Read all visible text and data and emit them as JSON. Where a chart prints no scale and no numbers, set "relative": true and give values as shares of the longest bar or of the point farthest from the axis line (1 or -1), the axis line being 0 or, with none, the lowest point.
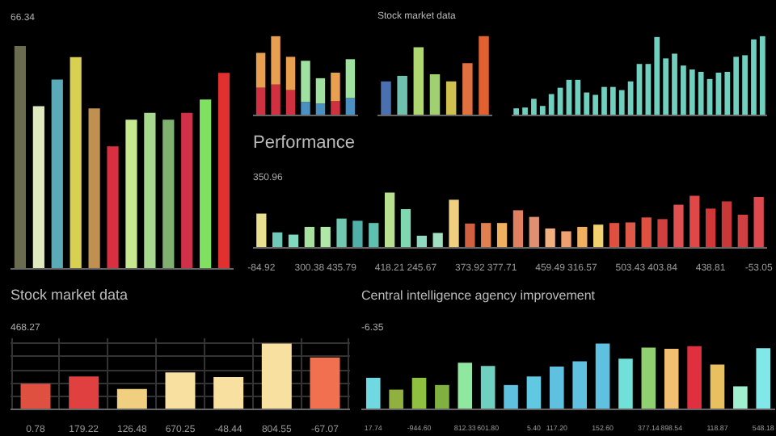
{
  "chart_data": [
    {
      "type": "bar",
      "relative": true,
      "annotations": [
        "66.34"
      ],
      "categories": [
        null,
        null,
        null,
        null,
        null,
        null,
        null,
        null,
        null,
        null,
        null,
        null
      ],
      "values": [
        1,
        0.73,
        0.85,
        0.95,
        0.72,
        0.55,
        0.67,
        0.7,
        0.67,
        0.7,
        0.76,
        0.88
      ],
      "colors": [
        "#6b6b50",
        "#e0e8c0",
        "#5aaab8",
        "#d8d050",
        "#c09050",
        "#d83040",
        "#c8e890",
        "#a8d890",
        "#80b070",
        "#d03048",
        "#80e060",
        "#e03030"
      ]
    },
    {
      "type": "bar",
      "relative": true,
      "stacked": true,
      "categories": [
        null,
        null,
        null,
        null,
        null,
        null,
        null
      ],
      "series": [
        {
          "values": [
            0.35,
            0.39,
            0.32,
            0.17,
            0.15,
            0.18,
            0.22
          ],
          "colors": [
            "#d03040",
            "#d03040",
            "#d03040",
            "#4a90c0",
            "#4a90c0",
            "#d03040",
            "#4a90c0"
          ]
        },
        {
          "values": [
            0.44,
            0.61,
            0.42,
            0.52,
            0.32,
            0.36,
            0.49
          ],
          "colors": [
            "#e8a050",
            "#e8a050",
            "#e8a050",
            "#a0e0a0",
            "#a0e0a0",
            "#e8a050",
            "#a0e0a0"
          ]
        }
      ]
    },
    {
      "type": "bar",
      "relative": true,
      "title": "Stock market data",
      "categories": [
        null,
        null,
        null,
        null,
        null,
        null,
        null
      ],
      "values": [
        0.43,
        0.5,
        0.86,
        0.52,
        0.43,
        0.66,
        1
      ],
      "colors": [
        "#4a70b0",
        "#70c0b0",
        "#b0d870",
        "#a0d070",
        "#d0c050",
        "#e07040",
        "#e06030"
      ]
    },
    {
      "type": "bar",
      "relative": true,
      "color": "#70d0c0",
      "categories": [
        null,
        null,
        null,
        null,
        null,
        null,
        null,
        null,
        null,
        null,
        null,
        null,
        null,
        null,
        null,
        null,
        null,
        null,
        null,
        null,
        null,
        null,
        null,
        null,
        null,
        null,
        null,
        null,
        null
      ],
      "values": [
        0.09,
        0.1,
        0.21,
        0.12,
        0.27,
        0.35,
        0.45,
        0.45,
        0.29,
        0.26,
        0.36,
        0.36,
        0.32,
        0.43,
        0.65,
        0.65,
        0.99,
        0.72,
        0.78,
        0.63,
        0.58,
        0.55,
        0.46,
        0.54,
        0.55,
        0.74,
        0.76,
        0.96,
        1
      ]
    },
    {
      "type": "bar",
      "relative": true,
      "title": "Performance",
      "annotations": [
        "350.96"
      ],
      "categories": [
        "-84.92",
        null,
        null,
        "300.38",
        null,
        "435.79",
        null,
        null,
        "418.21",
        null,
        "245.67",
        null,
        null,
        "373.92",
        null,
        "377.71",
        null,
        null,
        "459.49",
        null,
        "316.57",
        null,
        null,
        "503.43",
        null,
        "403.84",
        null,
        null,
        "438.81",
        null,
        null,
        "-53.05"
      ],
      "values": [
        0.62,
        0.28,
        0.24,
        0.38,
        0.38,
        0.53,
        0.49,
        0.45,
        1,
        0.7,
        0.22,
        0.27,
        0.87,
        0.44,
        0.45,
        0.45,
        0.68,
        0.56,
        0.35,
        0.3,
        0.38,
        0.42,
        0.45,
        0.46,
        0.55,
        0.52,
        0.78,
        0.94,
        0.71,
        0.84,
        0.6,
        0.92
      ],
      "colors": [
        "#e8e090",
        "#70c8b8",
        "#80d8c0",
        "#a8e0a0",
        "#b0e8a8",
        "#70c8b0",
        "#50b0a8",
        "#60c0b0",
        "#b8e090",
        "#80d8b0",
        "#90d8c0",
        "#a0e0c0",
        "#f0d080",
        "#d06040",
        "#e08050",
        "#f0b060",
        "#e08060",
        "#e09070",
        "#f0b080",
        "#f0a070",
        "#f0b060",
        "#f0d070",
        "#e05040",
        "#e05848",
        "#e05040",
        "#d04040",
        "#e05050",
        "#e04848",
        "#d03838",
        "#c83838",
        "#d04040",
        "#e04850"
      ]
    },
    {
      "type": "bar",
      "relative": true,
      "grid": true,
      "title": "Stock market data",
      "annotations": [
        "468.27"
      ],
      "categories": [
        "0.78",
        "179.22",
        "126.48",
        "670.25",
        "-48.44",
        "804.55",
        "-67.07"
      ],
      "values": [
        0.39,
        0.5,
        0.31,
        0.56,
        0.49,
        1,
        0.79
      ],
      "colors": [
        "#e05040",
        "#e04040",
        "#f0d080",
        "#f8e0a0",
        "#f8e0a0",
        "#f8e0a0",
        "#f07050"
      ]
    },
    {
      "type": "bar",
      "relative": true,
      "title": "Central intelligence agency improvement",
      "annotations": [
        "-6.35"
      ],
      "categories": [
        "17.74",
        null,
        "-944.60",
        null,
        "812.33",
        "601.80",
        null,
        "5.40",
        "117.20",
        null,
        "152.60",
        null,
        "377.14",
        "898.54",
        null,
        "118.87",
        null,
        "548.18"
      ],
      "values": [
        0.48,
        0.3,
        0.48,
        0.37,
        0.71,
        0.66,
        0.37,
        0.5,
        0.65,
        0.73,
        1,
        0.77,
        0.94,
        0.92,
        0.96,
        0.68,
        0.35,
        0.93
      ],
      "colors": [
        "#70d8e0",
        "#90b040",
        "#90c040",
        "#80b040",
        "#90e8a0",
        "#70d0c0",
        "#60c0e0",
        "#60c8e0",
        "#60c0e0",
        "#60c0e0",
        "#60c0e0",
        "#70e0d8",
        "#90d070",
        "#f0c070",
        "#e03040",
        "#e8c060",
        "#a0f0d0",
        "#80e8e8"
      ]
    }
  ]
}
